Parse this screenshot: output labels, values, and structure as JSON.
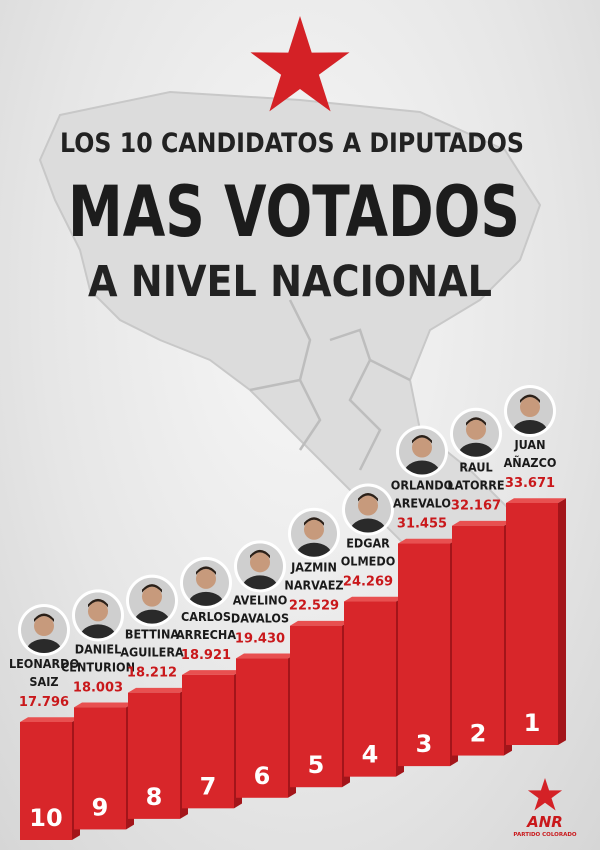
{
  "header": {
    "line1": "LOS 10 CANDIDATOS A DIPUTADOS",
    "line2": "MAS VOTADOS",
    "line3": "A NIVEL NACIONAL"
  },
  "colors": {
    "accent_red": "#d42126",
    "bar_front": "#d8262a",
    "bar_side": "#a3151a",
    "bar_top": "#e85050",
    "title_dark": "#1e1e1e"
  },
  "chart_data": {
    "type": "bar",
    "title": "LOS 10 CANDIDATOS A DIPUTADOS MAS VOTADOS A NIVEL NACIONAL",
    "categories": [
      "10",
      "9",
      "8",
      "7",
      "6",
      "5",
      "4",
      "3",
      "2",
      "1"
    ],
    "values": [
      17796,
      18003,
      18212,
      18921,
      19430,
      22529,
      24269,
      31455,
      32167,
      33671
    ],
    "candidates": [
      {
        "rank": "10",
        "first": "LEONARDO",
        "last": "SAIZ",
        "votes": "17.796"
      },
      {
        "rank": "9",
        "first": "DANIEL",
        "last": "CENTURION",
        "votes": "18.003"
      },
      {
        "rank": "8",
        "first": "BETTINA",
        "last": "AGUILERA",
        "votes": "18.212"
      },
      {
        "rank": "7",
        "first": "CARLOS",
        "last": "ARRECHA",
        "votes": "18.921"
      },
      {
        "rank": "6",
        "first": "AVELINO",
        "last": "DAVALOS",
        "votes": "19.430"
      },
      {
        "rank": "5",
        "first": "JAZMIN",
        "last": "NARVAEZ",
        "votes": "22.529"
      },
      {
        "rank": "4",
        "first": "EDGAR",
        "last": "OLMEDO",
        "votes": "24.269"
      },
      {
        "rank": "3",
        "first": "ORLANDO",
        "last": "AREVALO",
        "votes": "31.455"
      },
      {
        "rank": "2",
        "first": "RAUL",
        "last": "LATORRE",
        "votes": "32.167"
      },
      {
        "rank": "1",
        "first": "JUAN",
        "last": "AÑAZCO",
        "votes": "33.671"
      }
    ],
    "xlabel": "",
    "ylabel": "",
    "grid": false,
    "legend": "none"
  },
  "logo": {
    "name": "ANR",
    "subtitle": "PARTIDO COLORADO"
  }
}
